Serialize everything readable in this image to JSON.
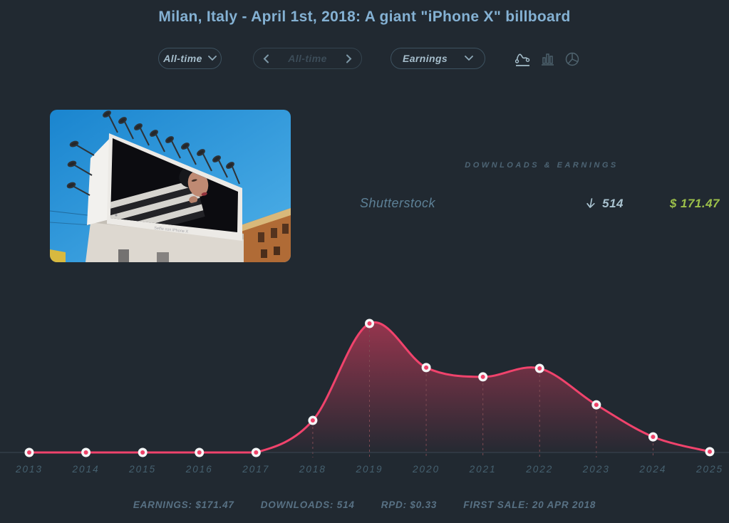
{
  "title": "Milan, Italy - April 1st, 2018: A giant \"iPhone X\" billboard",
  "controls": {
    "range_dropdown": "All-time",
    "period_label": "All-time",
    "metric_dropdown": "Earnings",
    "chart_icons": [
      "area-chart",
      "bar-chart",
      "pie-chart"
    ],
    "active_chart_icon": "area-chart"
  },
  "thumbnail": {
    "caption": "Selfie con iPhone X"
  },
  "earnings_panel": {
    "header": "DOWNLOADS & EARNINGS",
    "rows": [
      {
        "agency": "Shutterstock",
        "downloads": "514",
        "earnings": "$ 171.47"
      }
    ]
  },
  "chart_data": {
    "type": "area",
    "x": [
      2013,
      2014,
      2015,
      2016,
      2017,
      2018,
      2019,
      2020,
      2021,
      2022,
      2023,
      2024,
      2025
    ],
    "series": [
      {
        "name": "Earnings",
        "values": [
          0,
          0,
          0,
          0,
          0,
          11.7,
          47.1,
          31.0,
          27.6,
          30.7,
          17.4,
          5.7,
          0.3
        ]
      }
    ],
    "title": "",
    "xlabel": "",
    "ylabel": "",
    "ylim": [
      0,
      50
    ],
    "legend": "none",
    "grid": "dashed vertical drop-lines at data points",
    "line_color": "#f0436c",
    "area_gradient_top": "#e93e62",
    "point_core_color": "#ee4168",
    "point_ring_color": "#f4f5f6",
    "axis_color": "#3a4753"
  },
  "footer": {
    "stats": [
      "EARNINGS: $171.47",
      "DOWNLOADS: 514",
      "RPD: $0.33",
      "FIRST SALE: 20 APR 2018"
    ]
  },
  "colors": {
    "background": "#212931",
    "title_blue": "#84b1d3",
    "earnings_green": "#9cc04a",
    "chart_pink": "#f0436c"
  }
}
